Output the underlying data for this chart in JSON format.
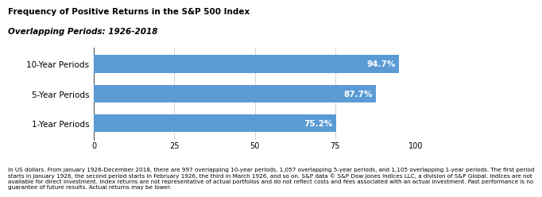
{
  "title": "Frequency of Positive Returns in the S&P 500 Index",
  "subtitle": "Overlapping Periods: 1926-2018",
  "categories": [
    "10-Year Periods",
    "5-Year Periods",
    "1-Year Periods"
  ],
  "values": [
    94.7,
    87.7,
    75.2
  ],
  "bar_color": "#5B9BD5",
  "label_color": "#FFFFFF",
  "xlim": [
    0,
    100
  ],
  "xticks": [
    0,
    25,
    50,
    75,
    100
  ],
  "footnote_line1": "In US dollars. From January 1926-December 2018, there are 997 overlapping 10-year periods, 1,057 overlapping 5-year periods, and 1,105 overlapping 1-year periods. The first period",
  "footnote_line2": "starts in January 1926, the second period starts in February 1926, the third in March 1926, and so on. S&P data © S&P Dow Jones Indices LLC, a division of S&P Global. Indices are not",
  "footnote_line3": "available for direct investment. Index returns are not representative of actual portfolios and do not reflect costs and fees associated with an actual investment. Past performance is no",
  "footnote_line4": "guarantee of future results. Actual returns may be lower.",
  "bar_height": 0.6,
  "title_fontsize": 7.5,
  "subtitle_fontsize": 7.5,
  "tick_fontsize": 7,
  "label_fontsize": 7.5,
  "ytick_fontsize": 7.5,
  "footnote_fontsize": 5.2
}
